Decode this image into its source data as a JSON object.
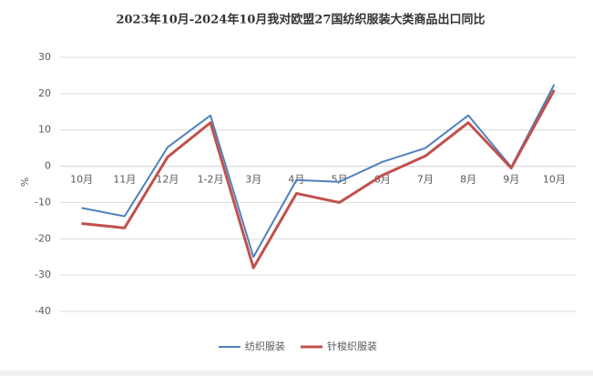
{
  "chart_data": {
    "type": "line",
    "title": "2023年10月-2024年10月我对欧盟27国纺织服装大类商品出口同比",
    "y_label": "%",
    "categories": [
      "10月",
      "11月",
      "12月",
      "1-2月",
      "3月",
      "4月",
      "5月",
      "6月",
      "7月",
      "8月",
      "9月",
      "10月"
    ],
    "series": [
      {
        "name": "纺织服装",
        "color": "#4f81bd",
        "values": [
          -11.5,
          -13.8,
          5.2,
          14,
          -25,
          -3.8,
          -4.3,
          1.2,
          5,
          14,
          -0.2,
          22.5
        ]
      },
      {
        "name": "针梭织服装",
        "color": "#c0504d",
        "values": [
          -15.8,
          -17,
          2.5,
          12,
          -28,
          -7.5,
          -10,
          -2.5,
          2.8,
          12,
          -0.5,
          21
        ]
      }
    ],
    "ylim": [
      -40,
      30
    ],
    "yticks": [
      -40,
      -30,
      -20,
      -10,
      0,
      10,
      20,
      30
    ],
    "grid": true,
    "legend": "bottom"
  }
}
